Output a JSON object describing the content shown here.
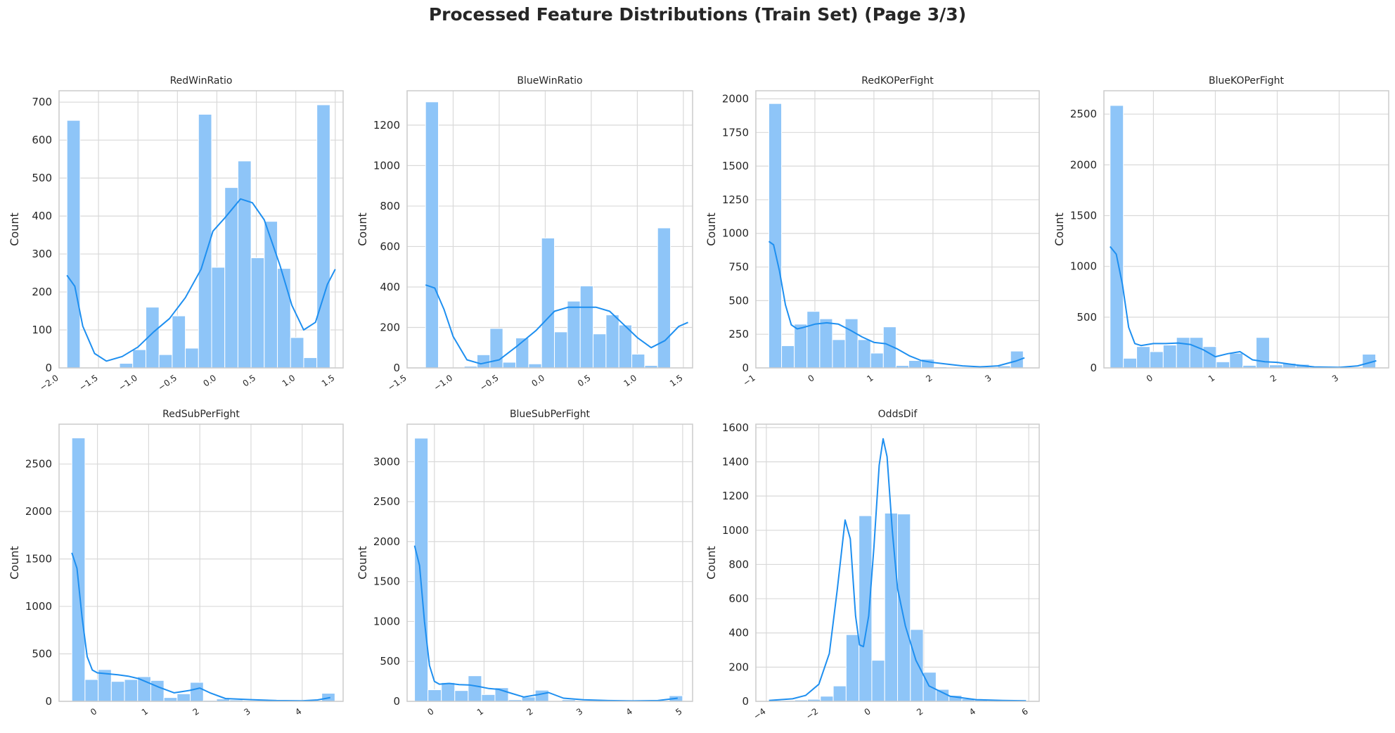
{
  "figure": {
    "title": "Processed Feature Distributions (Train Set) (Page 3/3)"
  },
  "colors": {
    "bar_fill": "#8ec5f8",
    "kde_line": "#1e8ff0",
    "grid": "#d9d9d9",
    "axes_edge": "#cccccc",
    "background": "#ffffff"
  },
  "chart_data": [
    {
      "type": "histogram",
      "title": "RedWinRatio",
      "xlabel": "",
      "ylabel": "Count",
      "xlim": [
        -2.0,
        1.6
      ],
      "ylim": [
        0,
        730
      ],
      "xticks": [
        -2.0,
        -1.5,
        -1.0,
        -0.5,
        0.0,
        0.5,
        1.0,
        1.5
      ],
      "xtick_labels": [
        "−2.0",
        "−1.5",
        "−1.0",
        "−0.5",
        "0.0",
        "0.5",
        "1.0",
        "1.5"
      ],
      "yticks": [
        0,
        100,
        200,
        300,
        400,
        500,
        600,
        700
      ],
      "ytick_labels": [
        "0",
        "100",
        "200",
        "300",
        "400",
        "500",
        "600",
        "700"
      ],
      "bin_start": -1.9,
      "bin_width": 0.1667,
      "counts": [
        652,
        0,
        0,
        0,
        12,
        48,
        160,
        35,
        137,
        52,
        668,
        265,
        475,
        545,
        290,
        386,
        262,
        80,
        27,
        693
      ],
      "kde_x": [
        -1.9,
        -1.8,
        -1.7,
        -1.55,
        -1.4,
        -1.2,
        -1.0,
        -0.8,
        -0.6,
        -0.4,
        -0.2,
        -0.05,
        0.1,
        0.3,
        0.45,
        0.6,
        0.8,
        0.95,
        1.1,
        1.25,
        1.4,
        1.5
      ],
      "kde_y": [
        244,
        215,
        110,
        38,
        18,
        30,
        55,
        95,
        130,
        185,
        260,
        360,
        395,
        445,
        435,
        390,
        270,
        165,
        100,
        120,
        220,
        260
      ],
      "grid": true
    },
    {
      "type": "histogram",
      "title": "BlueWinRatio",
      "xlabel": "",
      "ylabel": "Count",
      "xlim": [
        -1.5,
        1.6
      ],
      "ylim": [
        0,
        1370
      ],
      "xticks": [
        -1.5,
        -1.0,
        -0.5,
        0.0,
        0.5,
        1.0,
        1.5
      ],
      "xtick_labels": [
        "−1.5",
        "−1.0",
        "−0.5",
        "0.0",
        "0.5",
        "1.0",
        "1.5"
      ],
      "yticks": [
        0,
        200,
        400,
        600,
        800,
        1000,
        1200
      ],
      "ytick_labels": [
        "0",
        "200",
        "400",
        "600",
        "800",
        "1000",
        "1200"
      ],
      "bin_start": -1.3,
      "bin_width": 0.14,
      "counts": [
        1315,
        0,
        0,
        8,
        65,
        195,
        28,
        148,
        20,
        642,
        178,
        330,
        405,
        168,
        262,
        212,
        68,
        12,
        692
      ],
      "kde_x": [
        -1.3,
        -1.2,
        -1.1,
        -1.0,
        -0.85,
        -0.7,
        -0.5,
        -0.3,
        -0.1,
        0.1,
        0.25,
        0.4,
        0.55,
        0.7,
        0.85,
        1.0,
        1.15,
        1.3,
        1.45,
        1.55
      ],
      "kde_y": [
        410,
        395,
        290,
        155,
        40,
        20,
        40,
        110,
        185,
        280,
        300,
        300,
        300,
        280,
        215,
        150,
        100,
        135,
        205,
        225
      ],
      "grid": true
    },
    {
      "type": "histogram",
      "title": "RedKOPerFight",
      "xlabel": "",
      "ylabel": "Count",
      "xlim": [
        -1.0,
        3.8
      ],
      "ylim": [
        0,
        2060
      ],
      "xticks": [
        -1,
        0,
        1,
        2,
        3
      ],
      "xtick_labels": [
        "−1",
        "0",
        "1",
        "2",
        "3"
      ],
      "yticks": [
        0,
        250,
        500,
        750,
        1000,
        1250,
        1500,
        1750,
        2000
      ],
      "ytick_labels": [
        "0",
        "250",
        "500",
        "750",
        "1000",
        "1250",
        "1500",
        "1750",
        "2000"
      ],
      "bin_start": -0.78,
      "bin_width": 0.2155,
      "counts": [
        1965,
        165,
        325,
        420,
        365,
        210,
        365,
        210,
        110,
        305,
        18,
        55,
        65,
        8,
        5,
        3,
        2,
        2,
        15,
        125
      ],
      "kde_x": [
        -0.78,
        -0.7,
        -0.6,
        -0.5,
        -0.4,
        -0.3,
        -0.2,
        0.0,
        0.2,
        0.4,
        0.6,
        0.8,
        1.0,
        1.2,
        1.4,
        1.6,
        1.8,
        2.0,
        2.2,
        2.5,
        2.8,
        3.1,
        3.4,
        3.55
      ],
      "kde_y": [
        940,
        915,
        720,
        470,
        320,
        290,
        300,
        325,
        335,
        325,
        280,
        230,
        190,
        180,
        140,
        90,
        55,
        40,
        30,
        15,
        8,
        15,
        50,
        75
      ],
      "grid": true
    },
    {
      "type": "histogram",
      "title": "BlueKOPerFight",
      "xlabel": "",
      "ylabel": "Count",
      "xlim": [
        -0.8,
        3.8
      ],
      "ylim": [
        0,
        2730
      ],
      "xticks": [
        0,
        1,
        2,
        3
      ],
      "xtick_labels": [
        "0",
        "1",
        "2",
        "3"
      ],
      "yticks": [
        0,
        500,
        1000,
        1500,
        2000,
        2500
      ],
      "ytick_labels": [
        "0",
        "500",
        "1000",
        "1500",
        "2000",
        "2500"
      ],
      "bin_start": -0.7,
      "bin_width": 0.2145,
      "counts": [
        2585,
        95,
        210,
        160,
        225,
        300,
        300,
        210,
        60,
        145,
        25,
        300,
        30,
        45,
        35,
        8,
        5,
        3,
        2,
        135
      ],
      "kde_x": [
        -0.7,
        -0.6,
        -0.5,
        -0.4,
        -0.3,
        -0.2,
        0.0,
        0.2,
        0.4,
        0.6,
        0.8,
        1.0,
        1.2,
        1.4,
        1.6,
        1.8,
        2.0,
        2.3,
        2.6,
        3.0,
        3.3,
        3.6
      ],
      "kde_y": [
        1195,
        1120,
        820,
        400,
        240,
        220,
        240,
        240,
        245,
        230,
        180,
        110,
        140,
        160,
        80,
        60,
        55,
        30,
        10,
        5,
        20,
        70
      ],
      "grid": true
    },
    {
      "type": "histogram",
      "title": "RedSubPerFight",
      "xlabel": "",
      "ylabel": "Count",
      "xlim": [
        -0.75,
        4.8
      ],
      "ylim": [
        0,
        2920
      ],
      "xticks": [
        0,
        1,
        2,
        3,
        4
      ],
      "xtick_labels": [
        "0",
        "1",
        "2",
        "3",
        "4"
      ],
      "yticks": [
        0,
        500,
        1000,
        1500,
        2000,
        2500
      ],
      "ytick_labels": [
        "0",
        "500",
        "1000",
        "1500",
        "2000",
        "2500"
      ],
      "bin_start": -0.5,
      "bin_width": 0.257,
      "counts": [
        2775,
        230,
        335,
        210,
        230,
        260,
        220,
        40,
        80,
        200,
        10,
        25,
        15,
        5,
        3,
        5,
        3,
        2,
        5,
        85
      ],
      "kde_x": [
        -0.5,
        -0.4,
        -0.3,
        -0.2,
        -0.1,
        0.0,
        0.2,
        0.4,
        0.6,
        0.8,
        1.0,
        1.2,
        1.5,
        1.8,
        2.0,
        2.2,
        2.5,
        3.0,
        3.5,
        4.0,
        4.3,
        4.55
      ],
      "kde_y": [
        1565,
        1400,
        880,
        470,
        330,
        300,
        290,
        280,
        265,
        240,
        195,
        150,
        90,
        115,
        140,
        90,
        30,
        18,
        8,
        5,
        15,
        40
      ],
      "grid": true
    },
    {
      "type": "histogram",
      "title": "BlueSubPerFight",
      "xlabel": "",
      "ylabel": "Count",
      "xlim": [
        -0.55,
        5.2
      ],
      "ylim": [
        0,
        3470
      ],
      "xticks": [
        0,
        1,
        2,
        3,
        4,
        5
      ],
      "xtick_labels": [
        "0",
        "1",
        "2",
        "3",
        "4",
        "5"
      ],
      "yticks": [
        0,
        500,
        1000,
        1500,
        2000,
        2500,
        3000
      ],
      "ytick_labels": [
        "0",
        "500",
        "1000",
        "1500",
        "2000",
        "2500",
        "3000"
      ],
      "bin_start": -0.4,
      "bin_width": 0.27,
      "counts": [
        3295,
        145,
        235,
        135,
        320,
        85,
        170,
        20,
        55,
        140,
        5,
        20,
        8,
        3,
        2,
        2,
        2,
        1,
        2,
        70
      ],
      "kde_x": [
        -0.4,
        -0.3,
        -0.2,
        -0.1,
        0.0,
        0.1,
        0.3,
        0.5,
        0.7,
        0.9,
        1.1,
        1.3,
        1.5,
        1.8,
        2.1,
        2.3,
        2.6,
        3.0,
        3.5,
        4.0,
        4.5,
        4.9
      ],
      "kde_y": [
        1950,
        1700,
        1000,
        450,
        250,
        215,
        225,
        210,
        205,
        185,
        160,
        150,
        110,
        55,
        85,
        110,
        40,
        20,
        10,
        5,
        10,
        40
      ],
      "grid": true
    },
    {
      "type": "histogram",
      "title": "OddsDif",
      "xlabel": "",
      "ylabel": "Count",
      "xlim": [
        -4.4,
        6.4
      ],
      "ylim": [
        0,
        1620
      ],
      "xticks": [
        -4,
        -2,
        0,
        2,
        4,
        6
      ],
      "xtick_labels": [
        "−4",
        "−2",
        "0",
        "2",
        "4",
        "6"
      ],
      "yticks": [
        0,
        200,
        400,
        600,
        800,
        1000,
        1200,
        1400,
        1600
      ],
      "ytick_labels": [
        "0",
        "200",
        "400",
        "600",
        "800",
        "1000",
        "1200",
        "1400",
        "1600"
      ],
      "bin_start": -3.9,
      "bin_width": 0.49,
      "counts": [
        5,
        5,
        8,
        12,
        30,
        90,
        390,
        1085,
        240,
        1100,
        1095,
        420,
        170,
        70,
        35,
        15,
        10,
        5,
        3,
        2
      ],
      "kde_x": [
        -3.9,
        -3.0,
        -2.5,
        -2.0,
        -1.6,
        -1.3,
        -1.0,
        -0.8,
        -0.6,
        -0.45,
        -0.3,
        -0.1,
        0.1,
        0.3,
        0.45,
        0.6,
        0.8,
        1.0,
        1.3,
        1.7,
        2.2,
        3.0,
        4.0,
        5.0,
        5.9
      ],
      "kde_y": [
        5,
        15,
        35,
        100,
        280,
        650,
        1060,
        950,
        500,
        330,
        320,
        500,
        900,
        1380,
        1535,
        1430,
        1000,
        660,
        440,
        240,
        90,
        30,
        10,
        5,
        3
      ],
      "grid": true
    }
  ]
}
